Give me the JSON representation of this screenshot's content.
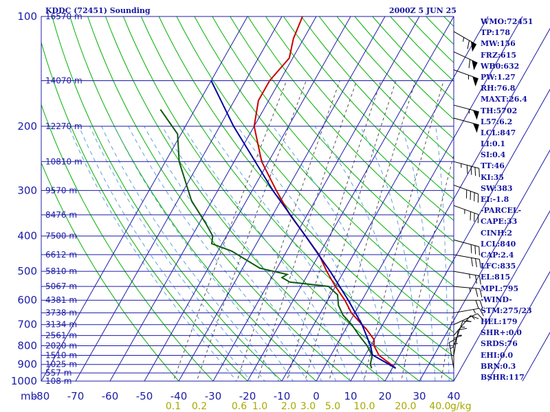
{
  "chart_data": {
    "type": "line",
    "title": "KDDC (72451) Sounding",
    "subtitle": "2000Z  5 JUN 25",
    "pressure_levels": [
      100,
      200,
      300,
      400,
      500,
      600,
      700,
      800,
      900,
      1000
    ],
    "height_labels": [
      {
        "p": 100,
        "label": "16570 m"
      },
      {
        "p": 150,
        "label": "14070 m"
      },
      {
        "p": 200,
        "label": "12270 m"
      },
      {
        "p": 250,
        "label": "10810 m"
      },
      {
        "p": 300,
        "label": "9570 m"
      },
      {
        "p": 350,
        "label": "8476 m"
      },
      {
        "p": 400,
        "label": "7500 m"
      },
      {
        "p": 450,
        "label": "6612 m"
      },
      {
        "p": 500,
        "label": "5810 m"
      },
      {
        "p": 550,
        "label": "5067 m"
      },
      {
        "p": 600,
        "label": "4381 m"
      },
      {
        "p": 650,
        "label": "3738 m"
      },
      {
        "p": 700,
        "label": "3134 m"
      },
      {
        "p": 750,
        "label": "2561 m"
      },
      {
        "p": 800,
        "label": "2020 m"
      },
      {
        "p": 850,
        "label": "1510 m"
      },
      {
        "p": 900,
        "label": "1025 m"
      },
      {
        "p": 950,
        "label": "557 m"
      },
      {
        "p": 1000,
        "label": "108 m"
      }
    ],
    "pressure_unit": "mb",
    "temperature_ticks": [
      -80,
      -70,
      -60,
      -50,
      -40,
      -30,
      -20,
      -10,
      0,
      10,
      20,
      30,
      40
    ],
    "xlim": [
      -80,
      40
    ],
    "ylim": [
      1000,
      100
    ],
    "mixing_ratio_labels": [
      "0.1",
      "0.2",
      "0.6",
      "1.0",
      "2.0",
      "3.0",
      "5.0",
      "10.0",
      "20.0",
      "40.0"
    ],
    "mixing_ratio_unit": "g/kg",
    "colors": {
      "grid": "#1c1ca8",
      "temperature": "#c80000",
      "dewpoint": "#0c5a0c",
      "parcel": "#0000a0",
      "dry_adiabat": "#00b000",
      "moist_adiabat": "#60a0d8",
      "mixing_ratio": "#505050"
    },
    "series": [
      {
        "role": "temperature",
        "points": [
          {
            "p": 922,
            "t": 21
          },
          {
            "p": 900,
            "t": 19
          },
          {
            "p": 850,
            "t": 14
          },
          {
            "p": 800,
            "t": 11
          },
          {
            "p": 770,
            "t": 10
          },
          {
            "p": 720,
            "t": 6
          },
          {
            "p": 700,
            "t": 4
          },
          {
            "p": 650,
            "t": -1
          },
          {
            "p": 600,
            "t": -5
          },
          {
            "p": 550,
            "t": -10
          },
          {
            "p": 500,
            "t": -15
          },
          {
            "p": 450,
            "t": -20
          },
          {
            "p": 400,
            "t": -27
          },
          {
            "p": 350,
            "t": -35
          },
          {
            "p": 300,
            "t": -43
          },
          {
            "p": 250,
            "t": -52
          },
          {
            "p": 200,
            "t": -60
          },
          {
            "p": 170,
            "t": -63
          },
          {
            "p": 150,
            "t": -63
          },
          {
            "p": 130,
            "t": -61
          },
          {
            "p": 115,
            "t": -63
          },
          {
            "p": 100,
            "t": -64
          }
        ]
      },
      {
        "role": "dewpoint",
        "points": [
          {
            "p": 922,
            "t": 14
          },
          {
            "p": 900,
            "t": 13
          },
          {
            "p": 850,
            "t": 12
          },
          {
            "p": 800,
            "t": 9
          },
          {
            "p": 750,
            "t": 5
          },
          {
            "p": 700,
            "t": 1
          },
          {
            "p": 660,
            "t": -3
          },
          {
            "p": 620,
            "t": -6
          },
          {
            "p": 580,
            "t": -8
          },
          {
            "p": 550,
            "t": -12
          },
          {
            "p": 535,
            "t": -24
          },
          {
            "p": 520,
            "t": -27
          },
          {
            "p": 510,
            "t": -26
          },
          {
            "p": 490,
            "t": -35
          },
          {
            "p": 440,
            "t": -46
          },
          {
            "p": 420,
            "t": -53
          },
          {
            "p": 400,
            "t": -54
          },
          {
            "p": 370,
            "t": -58
          },
          {
            "p": 320,
            "t": -66
          },
          {
            "p": 250,
            "t": -76
          },
          {
            "p": 210,
            "t": -81
          },
          {
            "p": 180,
            "t": -90
          }
        ]
      },
      {
        "role": "parcel",
        "points": [
          {
            "p": 922,
            "t": 21
          },
          {
            "p": 847,
            "t": 12
          },
          {
            "p": 800,
            "t": 10
          },
          {
            "p": 700,
            "t": 4
          },
          {
            "p": 600,
            "t": -4
          },
          {
            "p": 500,
            "t": -14
          },
          {
            "p": 400,
            "t": -27
          },
          {
            "p": 300,
            "t": -44
          },
          {
            "p": 200,
            "t": -66
          },
          {
            "p": 150,
            "t": -80
          }
        ]
      }
    ],
    "wind_barbs": [
      {
        "p": 110,
        "dir": 300,
        "spd": 65
      },
      {
        "p": 125,
        "dir": 295,
        "spd": 60
      },
      {
        "p": 140,
        "dir": 290,
        "spd": 55
      },
      {
        "p": 175,
        "dir": 285,
        "spd": 55
      },
      {
        "p": 190,
        "dir": 285,
        "spd": 50
      },
      {
        "p": 250,
        "dir": 285,
        "spd": 45
      },
      {
        "p": 290,
        "dir": 290,
        "spd": 40
      },
      {
        "p": 330,
        "dir": 290,
        "spd": 35
      },
      {
        "p": 410,
        "dir": 285,
        "spd": 30
      },
      {
        "p": 450,
        "dir": 280,
        "spd": 30
      },
      {
        "p": 500,
        "dir": 280,
        "spd": 25
      },
      {
        "p": 550,
        "dir": 275,
        "spd": 25
      },
      {
        "p": 600,
        "dir": 270,
        "spd": 20
      },
      {
        "p": 650,
        "dir": 260,
        "spd": 15
      },
      {
        "p": 700,
        "dir": 245,
        "spd": 15
      },
      {
        "p": 750,
        "dir": 220,
        "spd": 15
      },
      {
        "p": 800,
        "dir": 200,
        "spd": 15
      },
      {
        "p": 850,
        "dir": 190,
        "spd": 15
      },
      {
        "p": 900,
        "dir": 180,
        "spd": 15
      },
      {
        "p": 922,
        "dir": 170,
        "spd": 15
      }
    ]
  },
  "indices": [
    "WMO:72451",
    "TP:178",
    "MW:156",
    "FRZ:615",
    "WB0:632",
    "PW:1.27",
    "RH:76.8",
    "MAXT:26.4",
    "TH:5702",
    "L57:6.2",
    "LCL:847",
    "LI:0.1",
    "SI:0.4",
    "TT:46",
    "KI:35",
    "SW:383",
    "EI:-1.8",
    "-PARCEL-",
    "CAPE:33",
    "CINH:2",
    "LCL:840",
    "CAP:2.4",
    "LFC:835",
    "EL:815",
    "MPL:795",
    "-WIND-",
    "STM:275/23",
    "HEL:179",
    "SHR+:0.0",
    "SRDS:76",
    "EHI:0.0",
    "BRN:0.3",
    "BSHR:117"
  ]
}
